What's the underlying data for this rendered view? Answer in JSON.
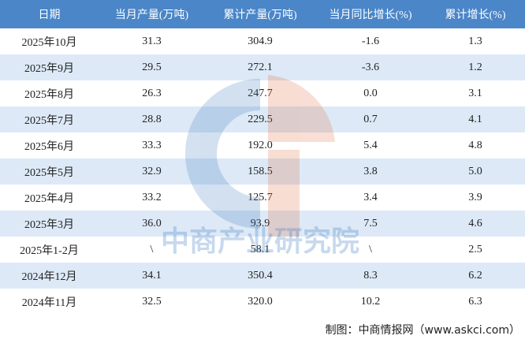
{
  "table": {
    "header": [
      "日期",
      "当月产量(万吨)",
      "累计产量(万吨)",
      "当月同比增长(%)",
      "累计增长(%)"
    ],
    "rows": [
      [
        "2025年10月",
        "31.3",
        "304.9",
        "-1.6",
        "1.3"
      ],
      [
        "2025年9月",
        "29.5",
        "272.1",
        "-3.6",
        "1.2"
      ],
      [
        "2025年8月",
        "26.3",
        "247.7",
        "0.0",
        "3.1"
      ],
      [
        "2025年7月",
        "28.8",
        "229.5",
        "0.7",
        "4.1"
      ],
      [
        "2025年6月",
        "33.3",
        "192.0",
        "5.4",
        "4.8"
      ],
      [
        "2025年5月",
        "32.9",
        "158.5",
        "3.8",
        "5.0"
      ],
      [
        "2025年4月",
        "33.2",
        "125.7",
        "3.4",
        "3.9"
      ],
      [
        "2025年3月",
        "36.0",
        "93.9",
        "7.5",
        "4.6"
      ],
      [
        "2025年1-2月",
        "\\",
        "58.1",
        "\\",
        "2.5"
      ],
      [
        "2024年12月",
        "34.1",
        "350.4",
        "8.3",
        "6.2"
      ],
      [
        "2024年11月",
        "32.5",
        "320.0",
        "10.2",
        "6.3"
      ]
    ]
  },
  "watermark": "中商产业研究院",
  "source": "制图：中商情报网（www.askci.com）"
}
